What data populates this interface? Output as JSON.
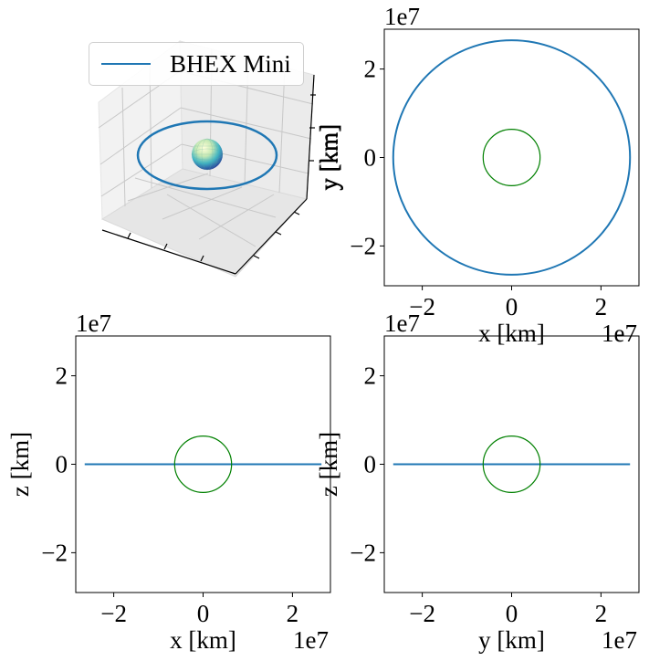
{
  "colors": {
    "orbit": "#1f77b4",
    "earth_ring": "#008000",
    "axes": "#000000",
    "pane": "#f2f2f2",
    "grid": "#c8c8c8"
  },
  "legend": {
    "label": "BHEX Mini"
  },
  "chart_data": [
    {
      "type": "scatter3d",
      "panel": "3d-view",
      "series": [
        {
          "name": "BHEX Mini",
          "shape": "circular orbit",
          "radius": 26500000,
          "inclination_deg": 0
        }
      ],
      "sphere": {
        "radius": 6371000,
        "colormap": "YlGnBu"
      },
      "ylabel": "y [km]",
      "legend": "upper left"
    },
    {
      "type": "line",
      "panel": "xy",
      "xlabel": "x [km]",
      "ylabel": "y [km]",
      "xlim": [
        -28500000.0,
        28500000.0
      ],
      "ylim": [
        -29000000.0,
        29000000.0
      ],
      "xticks": [
        -2,
        0,
        2
      ],
      "yticks": [
        -2,
        0,
        2
      ],
      "x_offset": "1e7",
      "y_offset": "1e7",
      "series": [
        {
          "name": "orbit",
          "shape": "circle",
          "center": [
            0,
            0
          ],
          "radius": 26500000
        },
        {
          "name": "earth",
          "shape": "circle",
          "center": [
            0,
            0
          ],
          "radius": 6371000
        }
      ]
    },
    {
      "type": "line",
      "panel": "xz",
      "xlabel": "x [km]",
      "ylabel": "z [km]",
      "xlim": [
        -28500000.0,
        28500000.0
      ],
      "ylim": [
        -29000000.0,
        29000000.0
      ],
      "xticks": [
        -2,
        0,
        2
      ],
      "yticks": [
        -2,
        0,
        2
      ],
      "x_offset": "1e7",
      "y_offset": "1e7",
      "series": [
        {
          "name": "orbit",
          "shape": "segment",
          "x": [
            -26500000,
            26500000
          ],
          "y": [
            0,
            0
          ]
        },
        {
          "name": "earth",
          "shape": "circle",
          "center": [
            0,
            0
          ],
          "radius": 6371000
        }
      ]
    },
    {
      "type": "line",
      "panel": "yz",
      "xlabel": "y [km]",
      "ylabel": "z [km]",
      "xlim": [
        -28500000.0,
        28500000.0
      ],
      "ylim": [
        -29000000.0,
        29000000.0
      ],
      "xticks": [
        -2,
        0,
        2
      ],
      "yticks": [
        -2,
        0,
        2
      ],
      "x_offset": "1e7",
      "y_offset": "1e7",
      "series": [
        {
          "name": "orbit",
          "shape": "segment",
          "x": [
            -26500000,
            26500000
          ],
          "y": [
            0,
            0
          ]
        },
        {
          "name": "earth",
          "shape": "circle",
          "center": [
            0,
            0
          ],
          "radius": 6371000
        }
      ]
    }
  ]
}
